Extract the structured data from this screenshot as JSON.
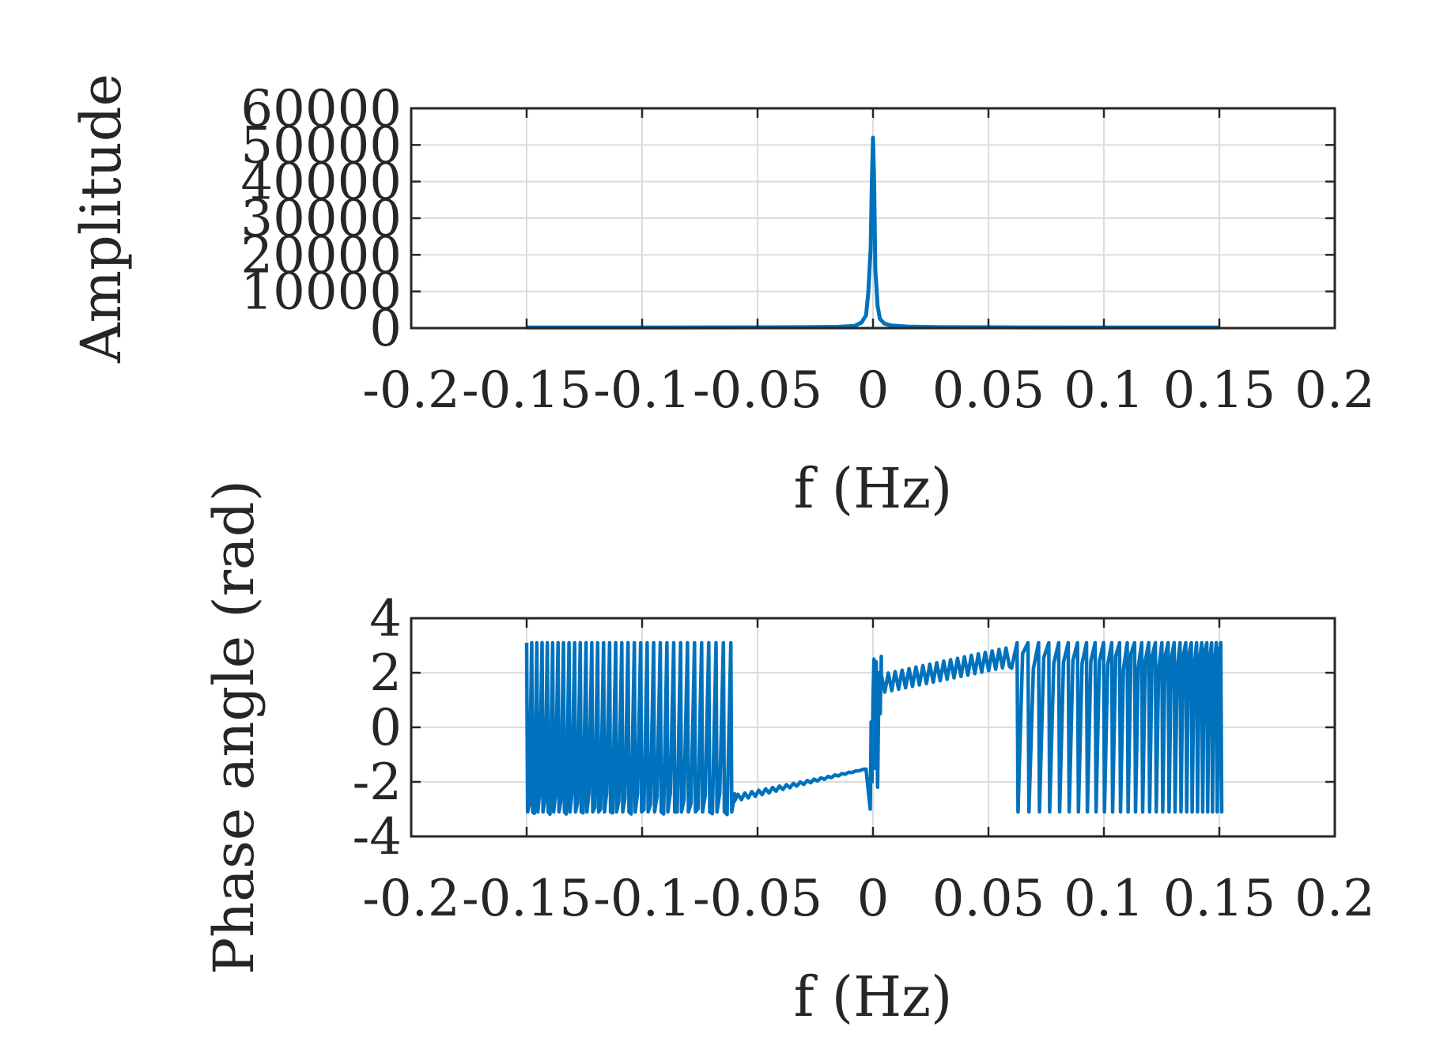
{
  "chart_data": [
    {
      "type": "line",
      "title": "",
      "xlabel": "f (Hz)",
      "ylabel": "Amplitude",
      "xlim": [
        -0.2,
        0.2
      ],
      "ylim": [
        0,
        60000
      ],
      "x_ticks": [
        "-0.2",
        "-0.15",
        "-0.1",
        "-0.05",
        "0",
        "0.05",
        "0.1",
        "0.15",
        "0.2"
      ],
      "y_ticks": [
        "0",
        "10000",
        "20000",
        "30000",
        "40000",
        "50000",
        "60000"
      ],
      "grid": true,
      "color": "#0072BD",
      "series": [
        {
          "x": [
            -0.15,
            -0.12,
            -0.09,
            -0.06,
            -0.03,
            -0.015,
            -0.008,
            -0.005,
            -0.003,
            -0.002,
            -0.001,
            -0.0005,
            0,
            0.0005,
            0.001,
            0.002,
            0.003,
            0.005,
            0.008,
            0.015,
            0.03,
            0.06,
            0.09,
            0.12,
            0.15
          ],
          "y": [
            150,
            150,
            150,
            200,
            250,
            350,
            600,
            1500,
            3500,
            10000,
            22000,
            40000,
            52000,
            40000,
            16000,
            6000,
            2500,
            1200,
            700,
            400,
            250,
            200,
            150,
            150,
            150
          ]
        }
      ]
    },
    {
      "type": "line",
      "title": "",
      "xlabel": "f (Hz)",
      "ylabel": "Phase angle (rad)",
      "xlim": [
        -0.2,
        0.2
      ],
      "ylim": [
        -4,
        4
      ],
      "x_ticks": [
        "-0.2",
        "-0.15",
        "-0.1",
        "-0.05",
        "0",
        "0.05",
        "0.1",
        "0.15",
        "0.2"
      ],
      "y_ticks": [
        "-4",
        "-2",
        "0",
        "2",
        "4"
      ],
      "grid": true,
      "color": "#0072BD",
      "phase_wrap": {
        "left_wrap_end": -0.06,
        "right_wrap_start": 0.06,
        "near_zero_left": -0.0016,
        "near_zero_right": 0.0036
      }
    }
  ]
}
